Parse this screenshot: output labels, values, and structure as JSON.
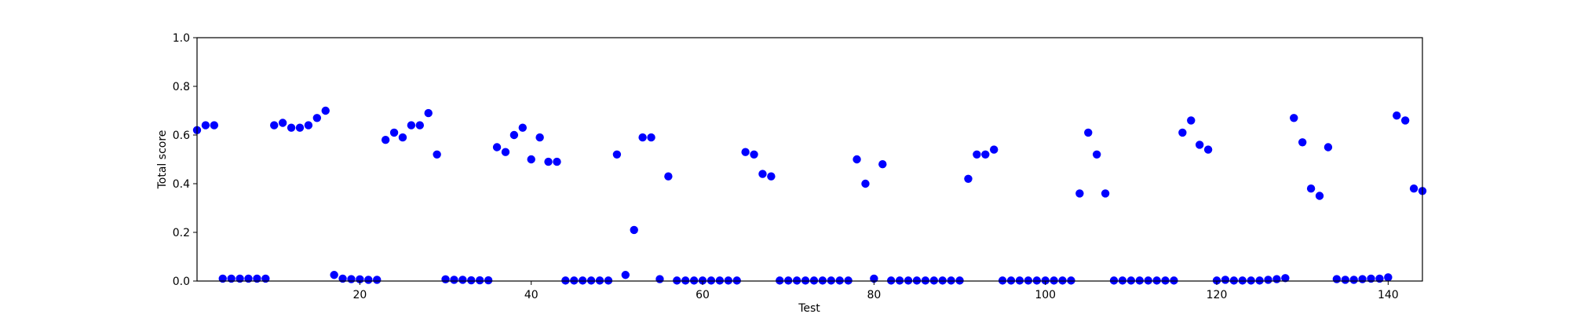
{
  "chart_data": {
    "type": "scatter",
    "title": "",
    "xlabel": "Test",
    "ylabel": "Total score",
    "xlim": [
      1,
      144
    ],
    "ylim": [
      0.0,
      1.0
    ],
    "xticks": [
      20,
      40,
      60,
      80,
      100,
      120,
      140
    ],
    "yticks": [
      0.0,
      0.2,
      0.4,
      0.6,
      0.8,
      1.0
    ],
    "ytick_labels": [
      "0.0",
      "0.2",
      "0.4",
      "0.6",
      "0.8",
      "1.0"
    ],
    "grid": false,
    "legend": "none",
    "marker_color": "#0000ff",
    "x": [
      1,
      2,
      3,
      4,
      5,
      6,
      7,
      8,
      9,
      10,
      11,
      12,
      13,
      14,
      15,
      16,
      17,
      18,
      19,
      20,
      21,
      22,
      23,
      24,
      25,
      26,
      27,
      28,
      29,
      30,
      31,
      32,
      33,
      34,
      35,
      36,
      37,
      38,
      39,
      40,
      41,
      42,
      43,
      44,
      45,
      46,
      47,
      48,
      49,
      50,
      51,
      52,
      53,
      54,
      55,
      56,
      57,
      58,
      59,
      60,
      61,
      62,
      63,
      64,
      65,
      66,
      67,
      68,
      69,
      70,
      71,
      72,
      73,
      74,
      75,
      76,
      77,
      78,
      79,
      80,
      81,
      82,
      83,
      84,
      85,
      86,
      87,
      88,
      89,
      90,
      91,
      92,
      93,
      94,
      95,
      96,
      97,
      98,
      99,
      100,
      101,
      102,
      103,
      104,
      105,
      106,
      107,
      108,
      109,
      110,
      111,
      112,
      113,
      114,
      115,
      116,
      117,
      118,
      119,
      120,
      121,
      122,
      123,
      124,
      125,
      126,
      127,
      128,
      129,
      130,
      131,
      132,
      133,
      134,
      135,
      136,
      137,
      138,
      139,
      140,
      141,
      142,
      143,
      144
    ],
    "y": [
      0.62,
      0.64,
      0.64,
      0.01,
      0.01,
      0.01,
      0.01,
      0.01,
      0.01,
      0.64,
      0.65,
      0.63,
      0.63,
      0.64,
      0.67,
      0.7,
      0.025,
      0.01,
      0.008,
      0.007,
      0.005,
      0.005,
      0.58,
      0.61,
      0.59,
      0.64,
      0.64,
      0.69,
      0.52,
      0.007,
      0.005,
      0.005,
      0.003,
      0.003,
      0.003,
      0.55,
      0.53,
      0.6,
      0.63,
      0.5,
      0.59,
      0.49,
      0.49,
      0.002,
      0.002,
      0.002,
      0.002,
      0.002,
      0.002,
      0.52,
      0.025,
      0.21,
      0.59,
      0.59,
      0.008,
      0.43,
      0.002,
      0.002,
      0.002,
      0.002,
      0.002,
      0.002,
      0.002,
      0.002,
      0.53,
      0.52,
      0.44,
      0.43,
      0.002,
      0.002,
      0.002,
      0.002,
      0.002,
      0.002,
      0.002,
      0.002,
      0.002,
      0.5,
      0.4,
      0.01,
      0.48,
      0.002,
      0.002,
      0.002,
      0.002,
      0.002,
      0.002,
      0.002,
      0.002,
      0.002,
      0.42,
      0.52,
      0.52,
      0.54,
      0.002,
      0.002,
      0.002,
      0.002,
      0.002,
      0.002,
      0.002,
      0.002,
      0.002,
      0.36,
      0.61,
      0.52,
      0.36,
      0.002,
      0.002,
      0.002,
      0.002,
      0.002,
      0.002,
      0.002,
      0.002,
      0.61,
      0.66,
      0.56,
      0.54,
      0.002,
      0.005,
      0.002,
      0.002,
      0.002,
      0.002,
      0.005,
      0.008,
      0.012,
      0.67,
      0.57,
      0.38,
      0.35,
      0.55,
      0.008,
      0.005,
      0.005,
      0.008,
      0.01,
      0.01,
      0.015,
      0.68,
      0.66,
      0.38,
      0.37
    ]
  }
}
